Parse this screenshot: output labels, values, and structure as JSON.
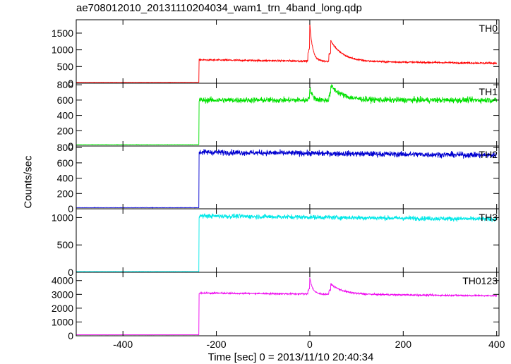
{
  "title": "ae708012010_20131110204034_wam1_trn_4band_long.qdp",
  "ylabel": "Counts/sec",
  "xlabel": "Time [sec] 0 = 2013/11/10 20:40:34",
  "chart_data": [
    {
      "type": "line",
      "name": "TH0",
      "color": "#ff0000",
      "xlim": [
        -500,
        405
      ],
      "ylim": [
        0,
        1900
      ],
      "yticks": [
        0,
        500,
        1000,
        1500
      ],
      "baseline": 30,
      "level": 700,
      "noise": 25,
      "trigger_x": -237,
      "peaks": [
        [
          0,
          1120,
          6
        ],
        [
          45,
          620,
          25
        ]
      ],
      "x_range": [
        -500,
        400
      ],
      "late_level": 600
    },
    {
      "type": "line",
      "name": "TH1",
      "color": "#00e000",
      "xlim": [
        -500,
        405
      ],
      "ylim": [
        0,
        820
      ],
      "yticks": [
        0,
        200,
        400,
        600,
        800
      ],
      "baseline": 18,
      "level": 600,
      "noise": 35,
      "trigger_x": -237,
      "peaks": [
        [
          0,
          160,
          6
        ],
        [
          45,
          190,
          25
        ]
      ],
      "x_range": [
        -500,
        400
      ],
      "late_level": 600
    },
    {
      "type": "line",
      "name": "TH2",
      "color": "#0000d0",
      "xlim": [
        -500,
        405
      ],
      "ylim": [
        0,
        820
      ],
      "yticks": [
        0,
        200,
        400,
        600,
        800
      ],
      "baseline": 15,
      "level": 740,
      "noise": 35,
      "trigger_x": -237,
      "peaks": [],
      "x_range": [
        -500,
        400
      ],
      "late_level": 700
    },
    {
      "type": "line",
      "name": "TH3",
      "color": "#00e8e8",
      "xlim": [
        -500,
        405
      ],
      "ylim": [
        0,
        1160
      ],
      "yticks": [
        0,
        500,
        1000
      ],
      "baseline": 15,
      "level": 1030,
      "noise": 40,
      "trigger_x": -237,
      "peaks": [],
      "x_range": [
        -500,
        400
      ],
      "late_level": 970
    },
    {
      "type": "line",
      "name": "TH0123",
      "color": "#ee00ee",
      "xlim": [
        -500,
        405
      ],
      "ylim": [
        0,
        4600
      ],
      "yticks": [
        0,
        1000,
        2000,
        3000,
        4000
      ],
      "baseline": 70,
      "level": 3100,
      "noise": 55,
      "trigger_x": -237,
      "peaks": [
        [
          0,
          1200,
          6
        ],
        [
          45,
          750,
          25
        ]
      ],
      "x_range": [
        -500,
        400
      ],
      "late_level": 2900
    }
  ],
  "xticks": [
    -400,
    -200,
    0,
    200,
    400
  ]
}
